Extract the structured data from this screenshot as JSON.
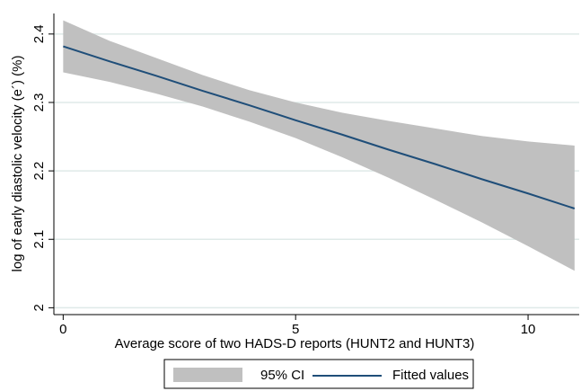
{
  "chart_data": {
    "type": "line",
    "title": null,
    "x_label": "Average score of two HADS-D reports (HUNT2 and HUNT3)",
    "y_label": "log of early diastolic velocity (e´) (%)",
    "x": [
      0,
      1,
      2,
      3,
      4,
      5,
      6,
      7,
      8,
      9,
      10,
      11
    ],
    "band": {
      "name": "95% CI",
      "color": "#c0c0c0",
      "upper": [
        2.42,
        2.39,
        2.365,
        2.34,
        2.318,
        2.3,
        2.285,
        2.273,
        2.262,
        2.251,
        2.243,
        2.237
      ],
      "lower": [
        2.344,
        2.33,
        2.313,
        2.294,
        2.272,
        2.248,
        2.22,
        2.19,
        2.158,
        2.125,
        2.09,
        2.054
      ]
    },
    "series": [
      {
        "name": "Fitted values",
        "color": "#1f4e79",
        "values": [
          2.382,
          2.36,
          2.339,
          2.317,
          2.296,
          2.274,
          2.253,
          2.231,
          2.21,
          2.188,
          2.167,
          2.145
        ]
      }
    ],
    "xlim": [
      -0.2,
      11.1
    ],
    "ylim": [
      1.99,
      2.43
    ],
    "xticks": [
      0,
      5,
      10
    ],
    "yticks": [
      2,
      2.1,
      2.2,
      2.3,
      2.4
    ],
    "grid": true,
    "legend": "bottom"
  }
}
